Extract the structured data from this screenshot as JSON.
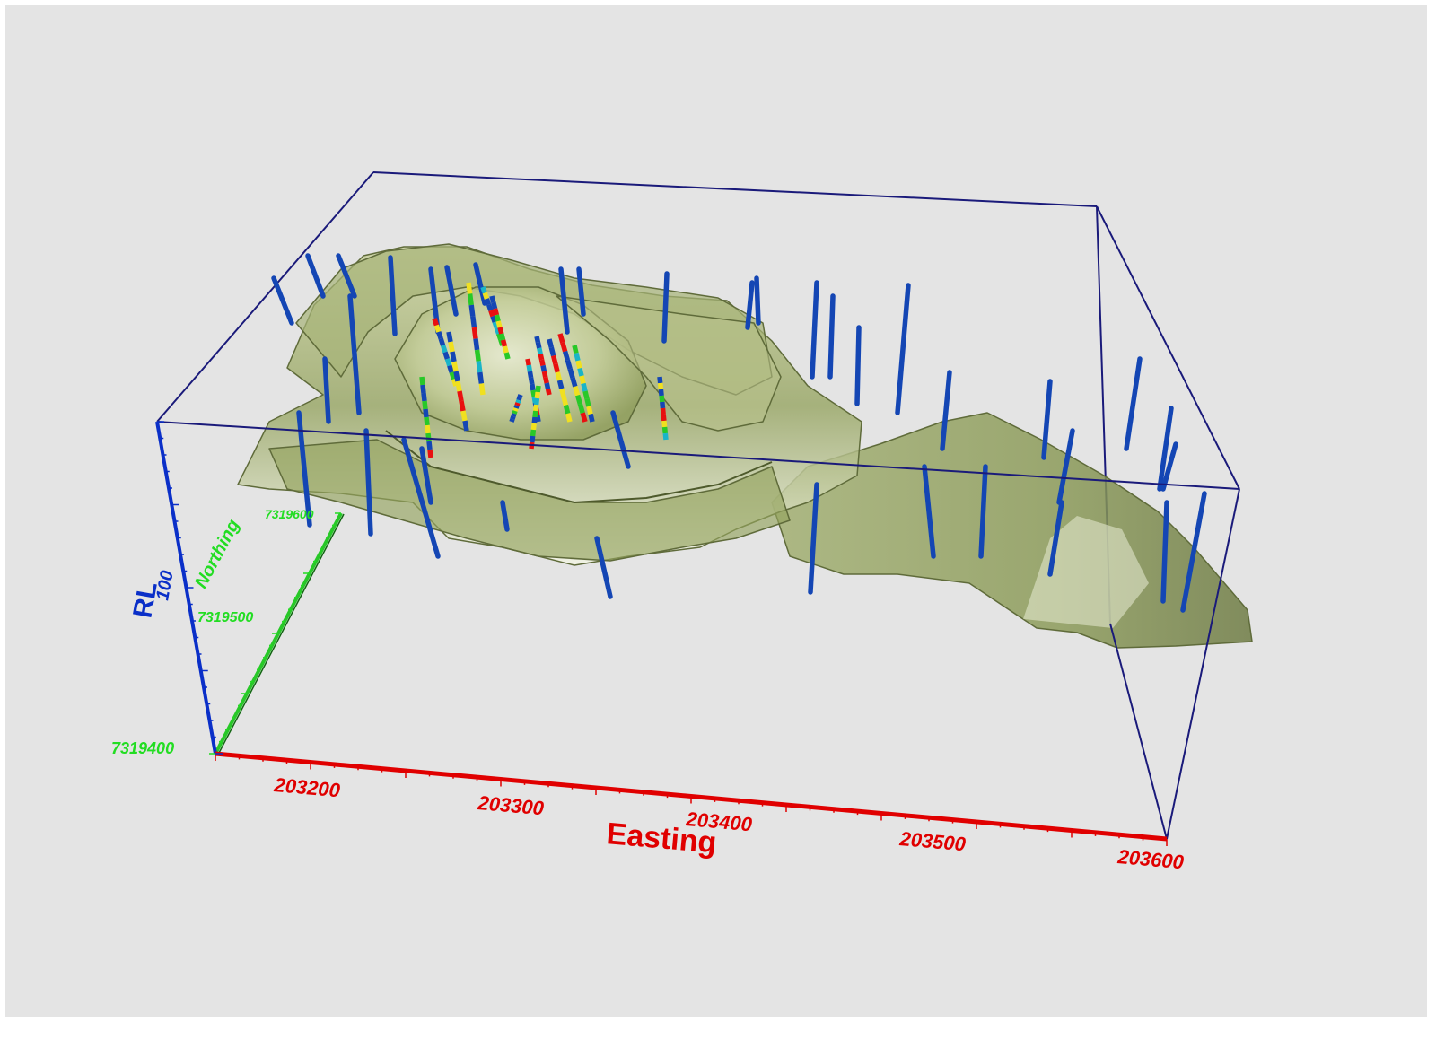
{
  "chart_data": {
    "type": "3d-scatter",
    "axes": {
      "x": {
        "label": "Easting",
        "ticks": [
          "203200",
          "203300",
          "203400",
          "203500",
          "203600"
        ],
        "color": "#e00000"
      },
      "y": {
        "label": "Northing",
        "ticks": [
          "7319400",
          "7319500",
          "7319600"
        ],
        "color": "#22dd22"
      },
      "z": {
        "label": "RL",
        "ticks": [
          "100"
        ],
        "color": "#0a2fc8"
      }
    },
    "bounding_box": {
      "color": "#1a1a7a"
    },
    "surface": {
      "name": "orebody wireframe",
      "fill": "#9aa86a",
      "edge": "#5f6b3a",
      "highlight": "#e8ecd0"
    },
    "drillholes": {
      "base_color": "#1446b4",
      "assay_colors": [
        "#e81010",
        "#f0e020",
        "#28c828",
        "#1ab4c8"
      ]
    }
  }
}
